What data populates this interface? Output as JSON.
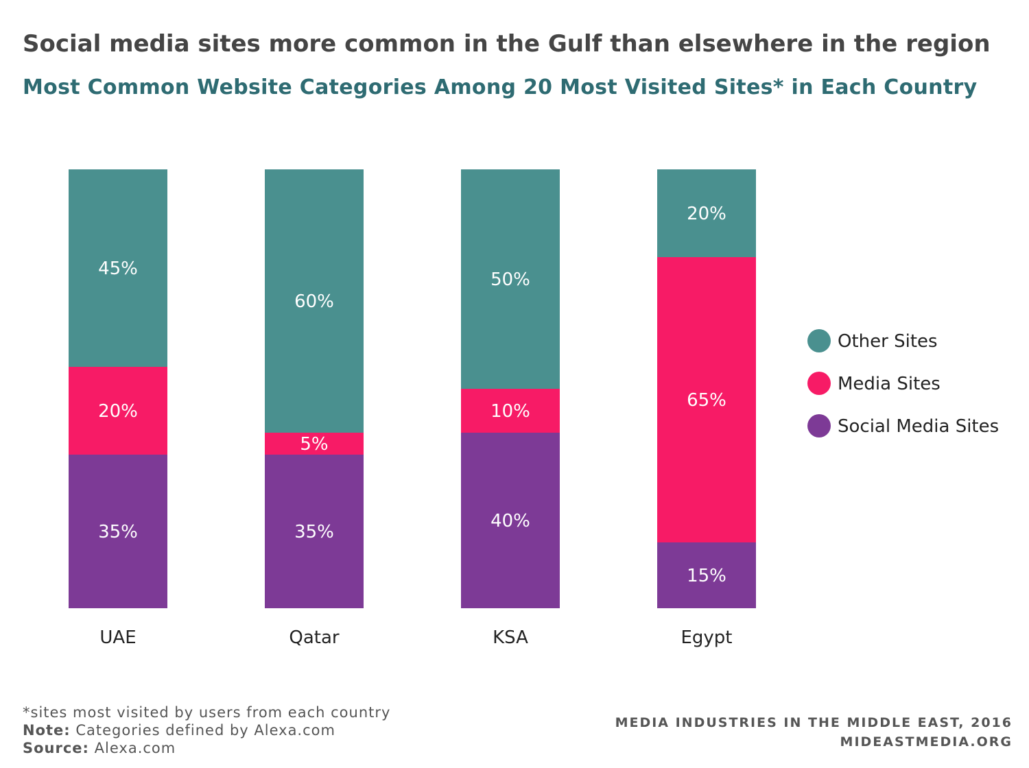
{
  "header": {
    "title": "Social media sites more common in the Gulf than elsewhere in the region",
    "subtitle": "Most Common Website Categories Among 20 Most Visited Sites* in Each Country"
  },
  "chart_data": {
    "type": "bar",
    "stacked": true,
    "categories": [
      "UAE",
      "Qatar",
      "KSA",
      "Egypt"
    ],
    "series": [
      {
        "name": "Social Media Sites",
        "color": "#7d3a96",
        "values": [
          35,
          35,
          40,
          15
        ],
        "labels": [
          "35%",
          "35%",
          "40%",
          "15%"
        ]
      },
      {
        "name": "Media Sites",
        "color": "#f71b66",
        "values": [
          20,
          5,
          10,
          65
        ],
        "labels": [
          "20%",
          "5%",
          "10%",
          "65%"
        ]
      },
      {
        "name": "Other Sites",
        "color": "#4a908f",
        "values": [
          45,
          60,
          50,
          20
        ],
        "labels": [
          "45%",
          "60%",
          "50%",
          "20%"
        ]
      }
    ],
    "legend_order": [
      "Other Sites",
      "Media Sites",
      "Social Media Sites"
    ],
    "legend_position": "right",
    "ylim": [
      0,
      100
    ],
    "grid": false
  },
  "footer": {
    "footnote": "*sites most visited by users from each country",
    "note_label": "Note:",
    "note_text": "Categories defined by Alexa.com",
    "source_label": "Source:",
    "source_text": "Alexa.com",
    "credit_line1": "MEDIA INDUSTRIES IN THE MIDDLE EAST, 2016",
    "credit_line2": "MIDEASTMEDIA.ORG"
  }
}
